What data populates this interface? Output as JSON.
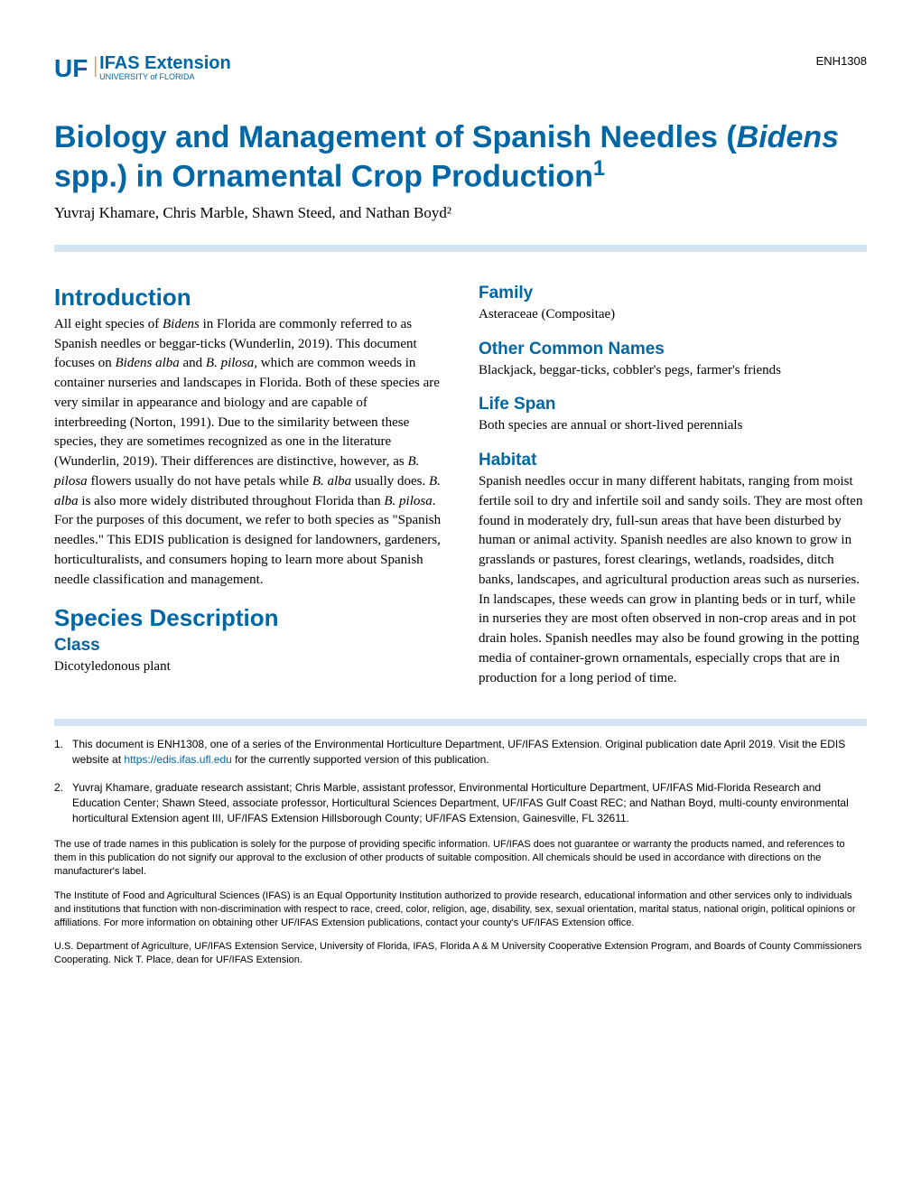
{
  "header": {
    "logo_uf": "UF",
    "logo_ifas": "IFAS Extension",
    "logo_sub": "UNIVERSITY of FLORIDA",
    "doc_id": "ENH1308"
  },
  "title": {
    "pre": "Biology and Management of Spanish Needles (",
    "italic": "Bidens",
    "post": " spp.) in Ornamental Crop Production",
    "sup": "1"
  },
  "authors": "Yuvraj Khamare, Chris Marble, Shawn Steed, and Nathan Boyd²",
  "sections": {
    "intro_heading": "Introduction",
    "intro_p1_a": "All eight species of ",
    "intro_p1_b": "Bidens",
    "intro_p1_c": " in Florida are commonly referred to as Spanish needles or beggar-ticks (Wunderlin, 2019). This document focuses on ",
    "intro_p1_d": "Bidens alba",
    "intro_p1_e": " and ",
    "intro_p1_f": "B. pilosa,",
    "intro_p1_g": " which are common weeds in container nurseries and landscapes in Florida. Both of these species are very similar in appearance and biology and are capable of interbreeding (Norton, 1991). Due to the similarity between these species, they are sometimes recognized as one in the literature (Wunderlin, 2019). Their differences are distinctive, however, as ",
    "intro_p1_h": "B. pilosa",
    "intro_p1_i": " flowers usually do not have petals while ",
    "intro_p1_j": "B. alba",
    "intro_p1_k": " usually does. ",
    "intro_p1_l": "B. alba",
    "intro_p1_m": " is also more widely distributed throughout Florida than ",
    "intro_p1_n": "B. pilosa",
    "intro_p1_o": ". For the purposes of this document, we refer to both species as \"Spanish needles.\" This EDIS publication is designed for landowners, gardeners, horticulturalists, and consumers hoping to learn more about Spanish needle classification and management.",
    "species_heading": "Species Description",
    "class_heading": "Class",
    "class_text": "Dicotyledonous plant",
    "family_heading": "Family",
    "family_text": "Asteraceae (Compositae)",
    "names_heading": "Other Common Names",
    "names_text": "Blackjack, beggar-ticks, cobbler's pegs, farmer's friends",
    "lifespan_heading": "Life Span",
    "lifespan_text": "Both species are annual or short-lived perennials",
    "habitat_heading": "Habitat",
    "habitat_text": "Spanish needles occur in many different habitats, ranging from moist fertile soil to dry and infertile soil and sandy soils. They are most often found in moderately dry, full-sun areas that have been disturbed by human or animal activity. Spanish needles are also known to grow in grasslands or pastures, forest clearings, wetlands, roadsides, ditch banks, landscapes, and agricultural production areas such as nurseries. In landscapes, these weeds can grow in planting beds or in turf, while in nurseries they are most often observed in non-crop areas and in pot drain holes. Spanish needles may also be found growing in the potting media of container-grown ornamentals, especially crops that are in production for a long period of time."
  },
  "footnotes": {
    "fn1_num": "1.",
    "fn1_a": "This document is ENH1308, one of a series of the Environmental Horticulture Department, UF/IFAS Extension. Original publication date April 2019. Visit the EDIS website at ",
    "fn1_link": "https://edis.ifas.ufl.edu",
    "fn1_b": " for the currently supported version of this publication.",
    "fn2_num": "2.",
    "fn2_text": "Yuvraj Khamare, graduate research assistant; Chris Marble, assistant professor, Environmental Horticulture Department, UF/IFAS Mid-Florida Research and Education Center; Shawn Steed, associate professor, Horticultural Sciences Department, UF/IFAS Gulf Coast REC; and Nathan Boyd, multi-county environmental horticultural Extension agent III, UF/IFAS Extension Hillsborough County; UF/IFAS Extension, Gainesville, FL 32611."
  },
  "disclaimers": {
    "d1": "The use of trade names in this publication is solely for the purpose of providing specific information. UF/IFAS does not guarantee or warranty the products named, and references to them in this publication do not signify our approval to the exclusion of other products of suitable composition. All chemicals should be used in accordance with directions on the manufacturer's label.",
    "d2": "The Institute of Food and Agricultural Sciences (IFAS) is an Equal Opportunity Institution authorized to provide research, educational information and other services only to individuals and institutions that function with non-discrimination with respect to race, creed, color, religion, age, disability, sex, sexual orientation, marital status, national origin, political opinions or affiliations. For more information on obtaining other UF/IFAS Extension publications, contact your county's UF/IFAS Extension office.",
    "d3": "U.S. Department of Agriculture, UF/IFAS Extension Service, University of Florida, IFAS, Florida A & M University Cooperative Extension Program, and Boards of County Commissioners Cooperating. Nick T. Place, dean for UF/IFAS Extension."
  }
}
